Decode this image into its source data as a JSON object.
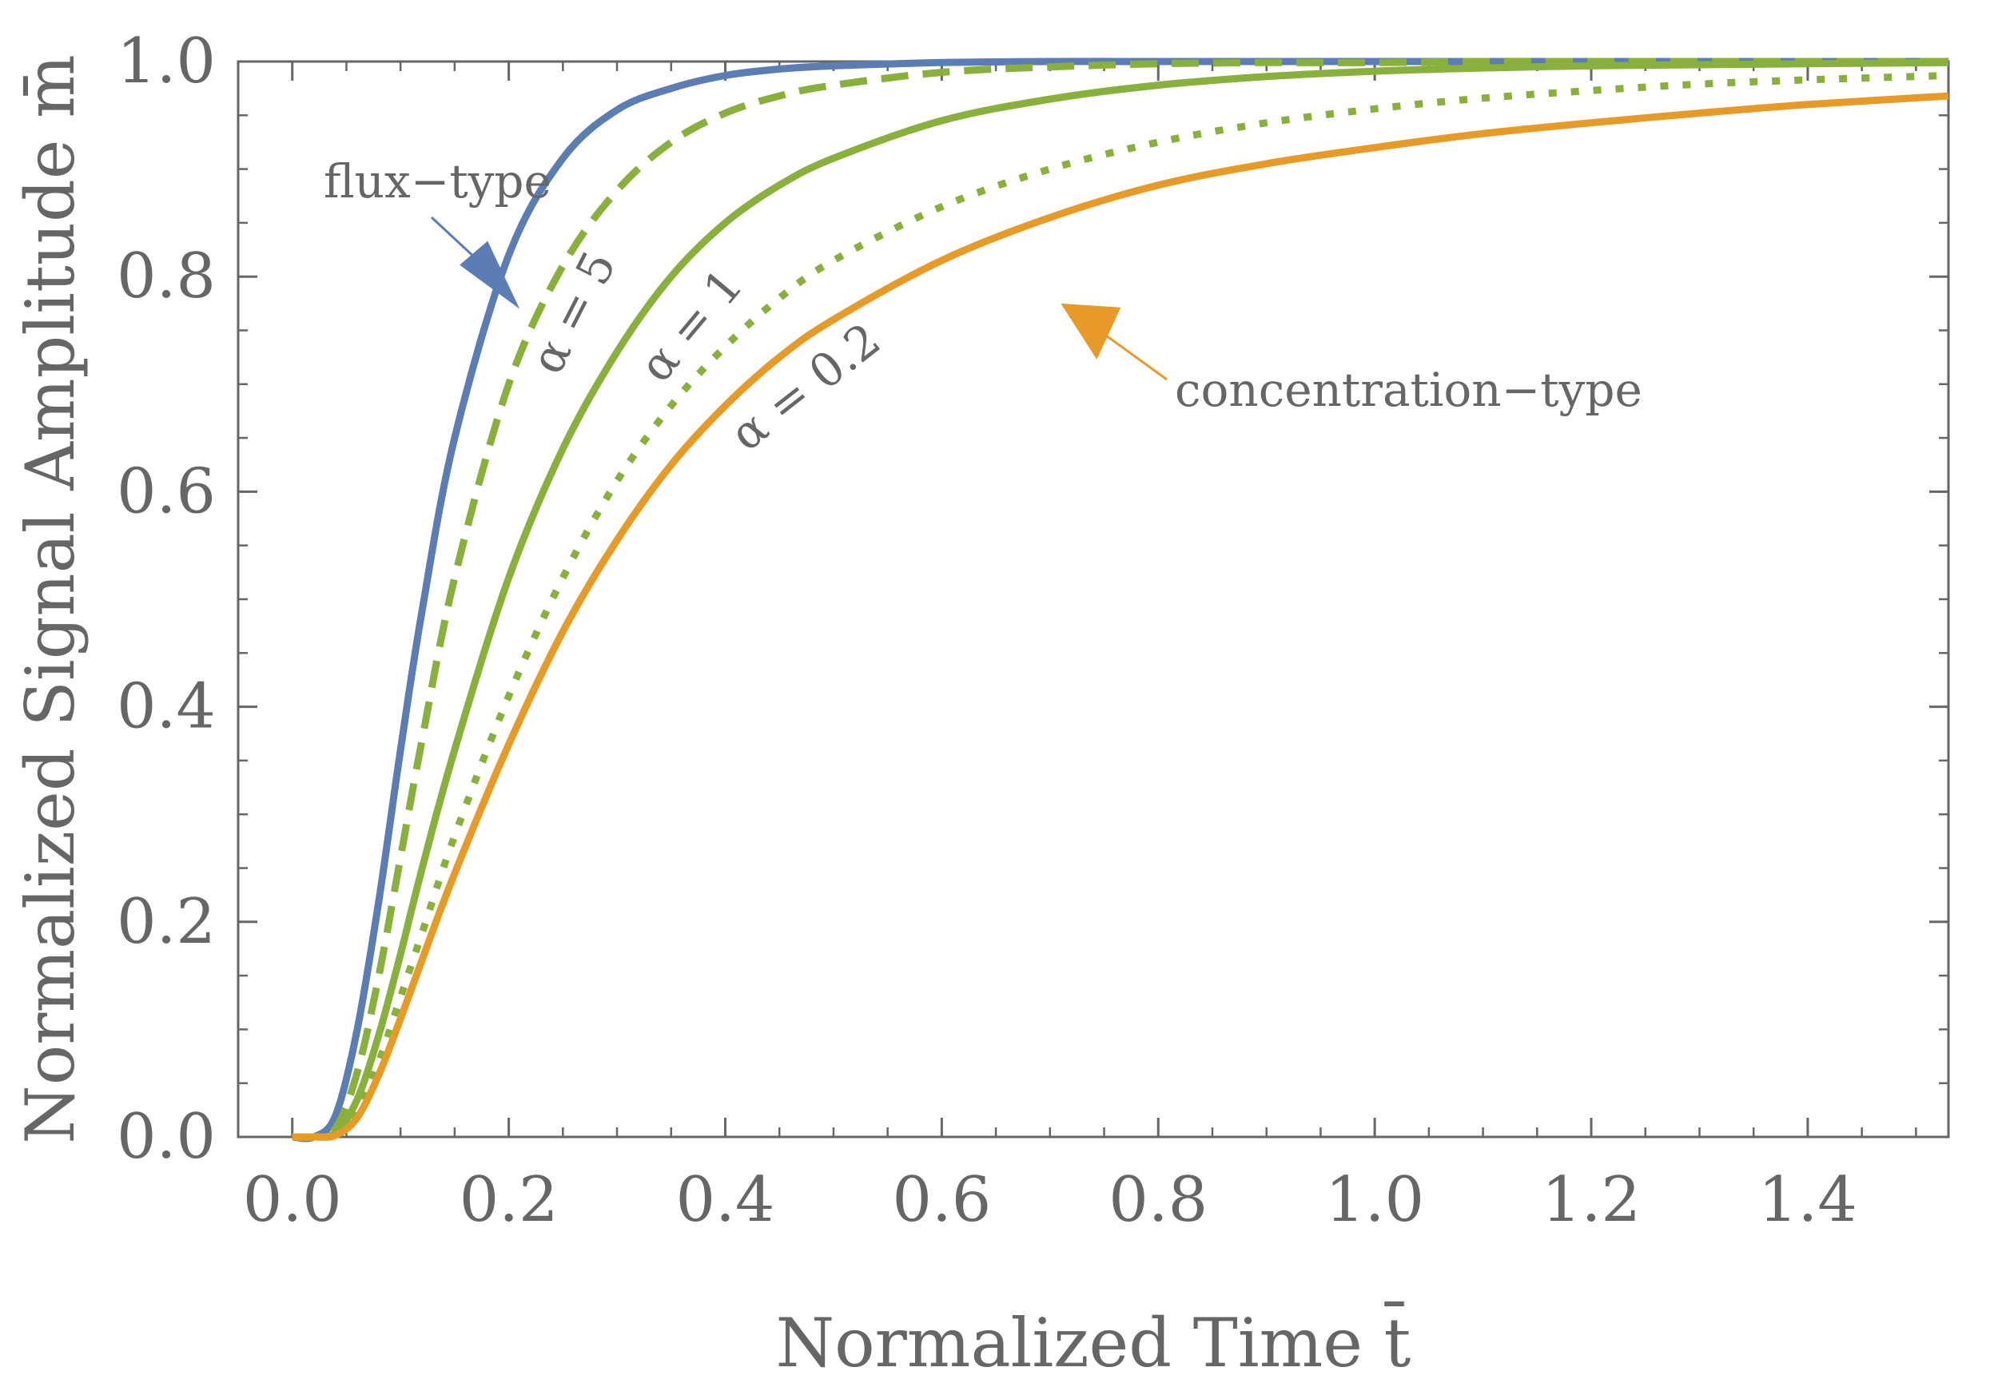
{
  "chart_data": {
    "type": "line",
    "title": "",
    "xlabel": "Normalized Time t̄",
    "ylabel": "Normalized Signal Amplitude m̄",
    "xlim": [
      -0.05,
      1.53
    ],
    "ylim": [
      0.0,
      1.0
    ],
    "grid": false,
    "x_ticks": [
      "0.0",
      "0.2",
      "0.4",
      "0.6",
      "0.8",
      "1.0",
      "1.2",
      "1.4"
    ],
    "y_ticks": [
      "0.0",
      "0.2",
      "0.4",
      "0.6",
      "0.8",
      "1.0"
    ],
    "x_tick_values": [
      0.0,
      0.2,
      0.4,
      0.6,
      0.8,
      1.0,
      1.2,
      1.4
    ],
    "y_tick_values": [
      0.0,
      0.2,
      0.4,
      0.6,
      0.8,
      1.0
    ],
    "x": [
      0.0,
      0.02,
      0.04,
      0.06,
      0.08,
      0.1,
      0.12,
      0.15,
      0.2,
      0.25,
      0.3,
      0.35,
      0.4,
      0.45,
      0.5,
      0.6,
      0.7,
      0.8,
      0.9,
      1.0,
      1.1,
      1.2,
      1.3,
      1.4,
      1.53
    ],
    "series": [
      {
        "name": "flux-type",
        "color": "#5b7db4",
        "style": "solid",
        "values": [
          0.0,
          0.0,
          0.02,
          0.1,
          0.22,
          0.36,
          0.49,
          0.65,
          0.82,
          0.91,
          0.955,
          0.975,
          0.987,
          0.993,
          0.996,
          0.999,
          1.0,
          1.0,
          1.0,
          1.0,
          1.0,
          1.0,
          1.0,
          1.0,
          1.0
        ]
      },
      {
        "name": "α = 5",
        "color": "#89b03a",
        "style": "dashed",
        "values": [
          0.0,
          0.0,
          0.008,
          0.06,
          0.15,
          0.26,
          0.37,
          0.52,
          0.7,
          0.81,
          0.88,
          0.925,
          0.952,
          0.968,
          0.978,
          0.99,
          0.995,
          0.998,
          0.999,
          0.999,
          1.0,
          1.0,
          1.0,
          1.0,
          1.0
        ]
      },
      {
        "name": "α = 1",
        "color": "#89b03a",
        "style": "solid",
        "values": [
          0.0,
          0.0,
          0.004,
          0.035,
          0.095,
          0.17,
          0.25,
          0.36,
          0.52,
          0.64,
          0.73,
          0.8,
          0.85,
          0.885,
          0.91,
          0.945,
          0.965,
          0.978,
          0.986,
          0.991,
          0.994,
          0.996,
          0.997,
          0.998,
          0.999
        ]
      },
      {
        "name": "α = 0.2",
        "color": "#89b03a",
        "style": "dotted",
        "values": [
          0.0,
          0.0,
          0.002,
          0.022,
          0.07,
          0.13,
          0.19,
          0.28,
          0.41,
          0.52,
          0.61,
          0.68,
          0.735,
          0.78,
          0.815,
          0.865,
          0.9,
          0.925,
          0.943,
          0.956,
          0.966,
          0.973,
          0.979,
          0.983,
          0.987
        ]
      },
      {
        "name": "concentration-type",
        "color": "#e79a25",
        "style": "solid",
        "values": [
          0.0,
          0.0,
          0.0015,
          0.018,
          0.058,
          0.11,
          0.165,
          0.245,
          0.365,
          0.47,
          0.555,
          0.625,
          0.68,
          0.725,
          0.76,
          0.815,
          0.855,
          0.885,
          0.905,
          0.92,
          0.933,
          0.943,
          0.952,
          0.96,
          0.968
        ]
      }
    ],
    "annotations": [
      {
        "text": "flux−type",
        "points_to": "flux-type",
        "at_x": 0.21,
        "at_y": 0.77
      },
      {
        "text": "concentration−type",
        "points_to": "concentration-type",
        "at_x": 0.71,
        "at_y": 0.775
      },
      {
        "text": "α = 5",
        "labels": "α = 5"
      },
      {
        "text": "α = 1",
        "labels": "α = 1"
      },
      {
        "text": "α = 0.2",
        "labels": "α = 0.2"
      }
    ]
  }
}
